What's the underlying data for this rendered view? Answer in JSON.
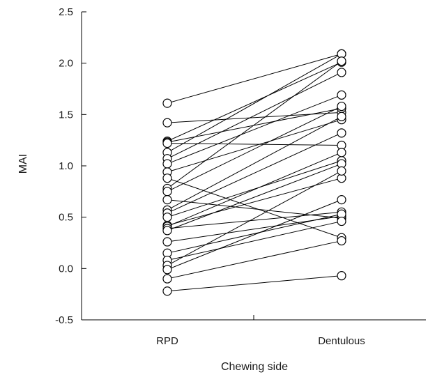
{
  "chart_data": {
    "type": "line",
    "title": "",
    "xlabel": "Chewing side",
    "ylabel": "MAI",
    "categories": [
      "RPD",
      "Dentulous"
    ],
    "ylim": [
      -0.5,
      2.5
    ],
    "yticks": [
      "-0.5",
      "0.0",
      "0.5",
      "1.0",
      "1.5",
      "2.0",
      "2.5"
    ],
    "grid": false,
    "legend": "none",
    "marker": "open-circle",
    "color": "#000000",
    "pairs": [
      [
        1.61,
        2.09
      ],
      [
        1.42,
        1.52
      ],
      [
        1.24,
        2.01
      ],
      [
        1.23,
        1.56
      ],
      [
        1.22,
        1.2
      ],
      [
        1.13,
        2.09
      ],
      [
        1.07,
        1.91
      ],
      [
        1.02,
        1.69
      ],
      [
        0.94,
        1.45
      ],
      [
        0.88,
        0.3
      ],
      [
        0.78,
        2.02
      ],
      [
        0.75,
        1.58
      ],
      [
        0.67,
        0.49
      ],
      [
        0.57,
        1.48
      ],
      [
        0.54,
        1.32
      ],
      [
        0.5,
        1.05
      ],
      [
        0.42,
        0.88
      ],
      [
        0.41,
        1.13
      ],
      [
        0.39,
        0.55
      ],
      [
        0.37,
        1.02
      ],
      [
        0.26,
        0.51
      ],
      [
        0.15,
        0.53
      ],
      [
        0.08,
        0.46
      ],
      [
        0.03,
        0.95
      ],
      [
        -0.01,
        0.67
      ],
      [
        -0.1,
        0.27
      ],
      [
        -0.22,
        -0.07
      ]
    ]
  }
}
